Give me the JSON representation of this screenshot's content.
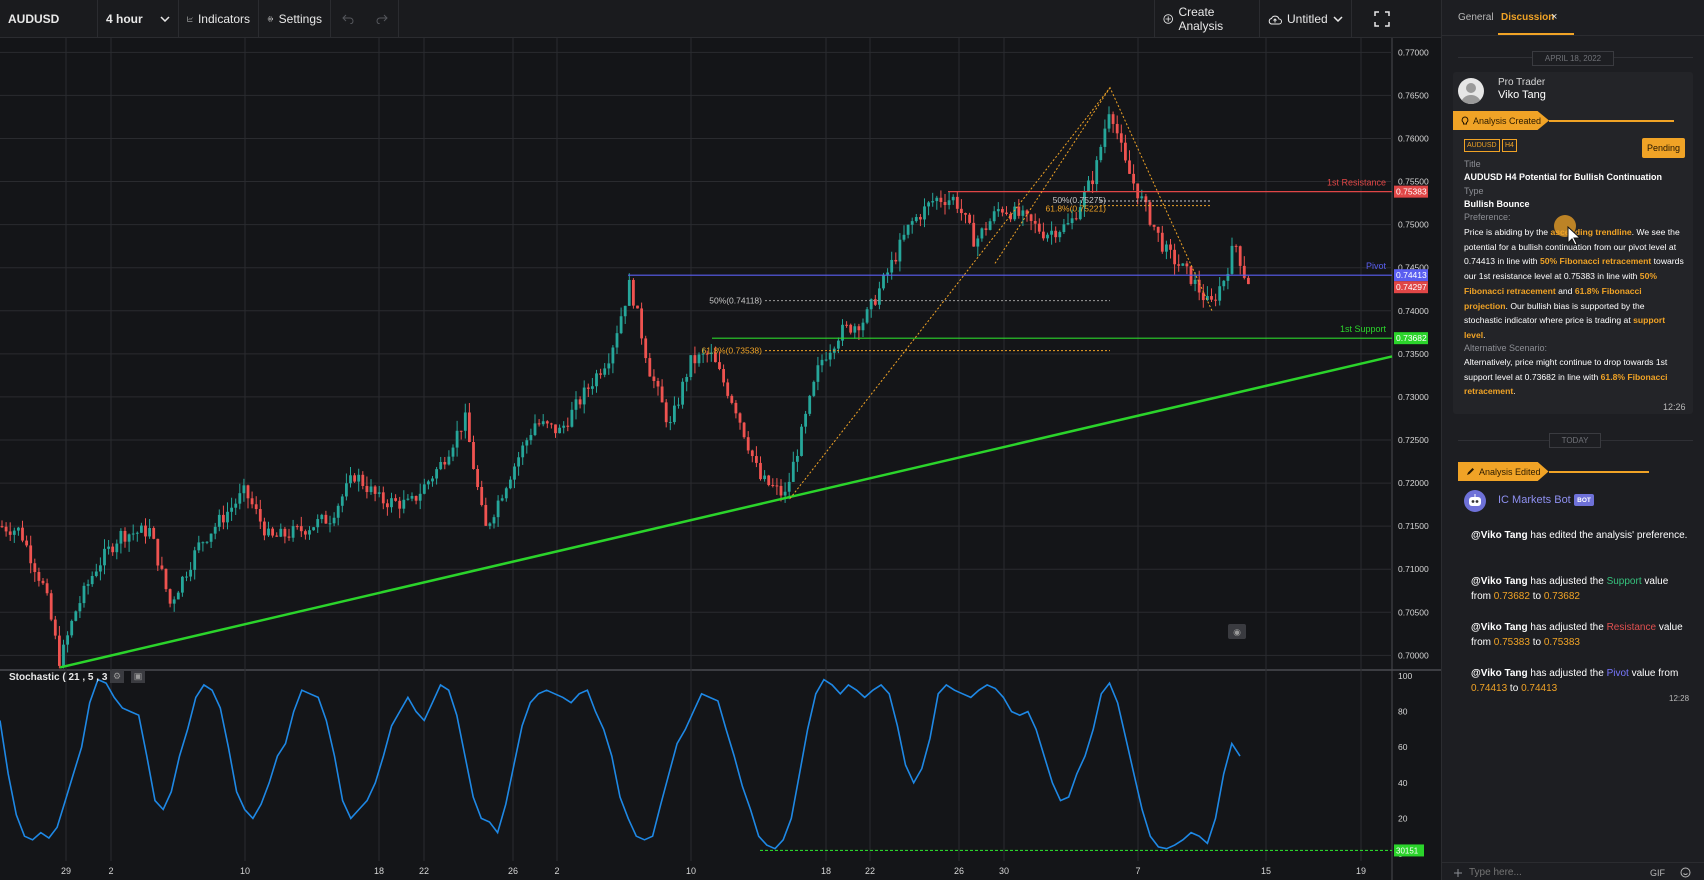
{
  "toolbar": {
    "symbol": "AUDUSD",
    "interval": "4 hour",
    "indicators_label": "Indicators",
    "settings_label": "Settings",
    "create_label": "Create Analysis",
    "layout_label": "Untitled"
  },
  "chart_data": {
    "type": "candlestick",
    "symbol": "AUDUSD",
    "y_axis_ticks": [
      "0.77000",
      "0.76500",
      "0.76000",
      "0.75500",
      "0.75000",
      "0.74500",
      "0.74000",
      "0.73500",
      "0.73000",
      "0.72500",
      "0.72000",
      "0.71500",
      "0.71000",
      "0.70500",
      "0.70000"
    ],
    "ylim": [
      0.6983,
      0.7712
    ],
    "x_axis_ticks": [
      "29",
      "2",
      "10",
      "18",
      "22",
      "26",
      "2",
      "10",
      "18",
      "22",
      "26",
      "30",
      "7",
      "15",
      "19"
    ],
    "price_levels": [
      {
        "label": "1st Resistance",
        "value": "0.75383",
        "color": "#e04646"
      },
      {
        "label": "Pivot",
        "value": "0.74413",
        "color": "#5a5ef0"
      },
      {
        "label": "",
        "value": "0.74297",
        "color": "#e04646"
      },
      {
        "label": "1st Support",
        "value": "0.73682",
        "color": "#2bd42b"
      }
    ],
    "fib_labels": [
      {
        "text": "50%(0.74118)",
        "color": "#c8c8c8"
      },
      {
        "text": "61.8%(0.73538)",
        "color": "#f0a326"
      },
      {
        "text": "50%(0.75275)",
        "color": "#c8c8c8"
      },
      {
        "text": "61.8%(0.75221)",
        "color": "#f0a326"
      }
    ],
    "trendline": {
      "from": [
        0,
        0.6986
      ],
      "to": [
        1,
        0.7347
      ]
    },
    "stochastic": {
      "title": "Stochastic ( 21 , 5 , 3 )",
      "y_ticks": [
        "100",
        "80",
        "60",
        "40",
        "20",
        "0"
      ],
      "last_value": "30151",
      "values": [
        75,
        45,
        22,
        10,
        8,
        12,
        9,
        15,
        30,
        45,
        60,
        85,
        98,
        96,
        88,
        82,
        80,
        78,
        55,
        30,
        25,
        35,
        55,
        70,
        88,
        95,
        92,
        82,
        60,
        35,
        25,
        20,
        28,
        40,
        55,
        62,
        80,
        92,
        90,
        88,
        75,
        55,
        30,
        20,
        25,
        30,
        40,
        55,
        72,
        80,
        88,
        80,
        75,
        85,
        95,
        92,
        78,
        55,
        32,
        20,
        18,
        12,
        28,
        50,
        72,
        85,
        90,
        92,
        90,
        88,
        85,
        90,
        92,
        80,
        70,
        55,
        32,
        20,
        10,
        8,
        10,
        28,
        45,
        62,
        70,
        80,
        90,
        88,
        86,
        70,
        55,
        38,
        25,
        10,
        5,
        3,
        8,
        20,
        45,
        70,
        90,
        98,
        95,
        90,
        95,
        92,
        88,
        92,
        95,
        90,
        72,
        50,
        40,
        48,
        65,
        90,
        95,
        92,
        90,
        88,
        92,
        95,
        93,
        88,
        80,
        78,
        80,
        70,
        55,
        40,
        30,
        32,
        45,
        55,
        70,
        90,
        96,
        85,
        65,
        45,
        25,
        10,
        4,
        3,
        5,
        8,
        12,
        10,
        6,
        20,
        45,
        62,
        55
      ]
    }
  },
  "panel": {
    "tab_general": "General",
    "tab_discussion": "Discussion",
    "close_glyph": "×",
    "date_1": "APRIL 18, 2022",
    "date_2": "TODAY",
    "role": "Pro Trader",
    "user_name": "Viko Tang",
    "banner_created": "Analysis Created",
    "chip_symbol": "AUDUSD",
    "chip_tf": "H4",
    "status": "Pending",
    "title_label": "Title",
    "title_value": "AUDUSD H4 Potential for Bullish Continuation",
    "type_label": "Type",
    "type_value": "Bullish Bounce",
    "pref_label": "Preference:",
    "pref_p1": "Price is abiding by the ",
    "pref_h1": "ascending trendline",
    "pref_p2": ". We see the potential for a bullish continuation from our pivot level at 0.74413 in line with ",
    "pref_h2": "50% Fibonacci retracement",
    "pref_p3": " towards our 1st resistance level at 0.75383 in line with ",
    "pref_h3": "50% Fibonacci retracement",
    "pref_p4": " and ",
    "pref_h4": "61.8% Fibonacci projection",
    "pref_p5": ". Our bullish bias is supported by the stochastic indicator where price is trading at ",
    "pref_h5": "support level",
    "pref_p6": ".",
    "alt_label": "Alternative Scenario:",
    "alt_p1": "Alternatively, price might continue to drop towards 1st support level at 0.73682 in line with ",
    "alt_h1": "61.8% Fibonacci retracement",
    "alt_p2": ".",
    "time_1": "12:26",
    "banner_edited": "Analysis Edited",
    "bot_name": "IC Markets Bot",
    "bot_badge": "BOT",
    "mention": "@Viko Tang",
    "msg1_text": "has edited the analysis' preference.",
    "msg2_a": "has adjusted the ",
    "msg2_key": "Support",
    "msg2_b": " value from ",
    "msg2_from": "0.73682",
    "msg2_to_word": " to ",
    "msg2_to": "0.73682",
    "msg3_a": "has adjusted the ",
    "msg3_key": "Resistance",
    "msg3_b": " value from ",
    "msg3_from": "0.75383",
    "msg3_to_word": " to ",
    "msg3_to": "0.75383",
    "msg4_a": "has adjusted the ",
    "msg4_key": "Pivot",
    "msg4_b": " value from ",
    "msg4_from": "0.74413",
    "msg4_to_word": " to ",
    "msg4_to": "0.74413",
    "time_2": "12:28",
    "placeholder": "Type here...",
    "gif_label": "GIF"
  },
  "colors": {
    "accent": "#f0a326",
    "bull": "#26a69a",
    "bear": "#ef5350",
    "trend": "#2bd42b",
    "stoch": "#1e88e5"
  }
}
